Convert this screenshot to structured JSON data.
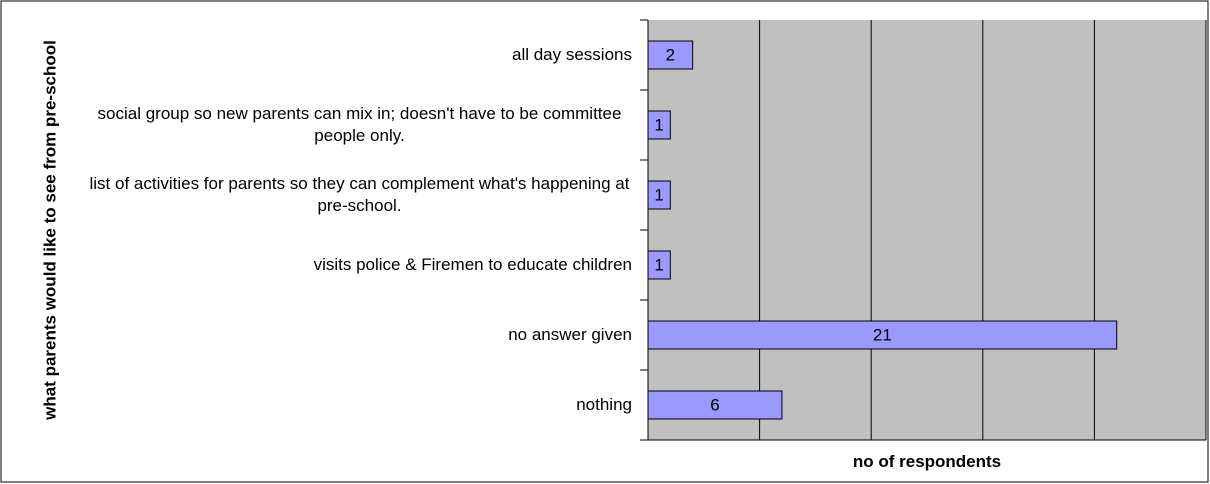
{
  "chart_data": {
    "type": "hbar",
    "categories": [
      "all day sessions",
      "social group so new parents can mix in; doesn't have to be committee people only.",
      "list of activities for parents so they can complement what's happening at pre-school.",
      "visits police & Firemen to educate children",
      "no answer given",
      "nothing"
    ],
    "values": [
      2,
      1,
      1,
      1,
      21,
      6
    ],
    "color": "#9999ff",
    "xlim": [
      0,
      25
    ],
    "xticks": [
      0,
      5,
      10,
      15,
      20,
      25
    ],
    "grid": true,
    "ylabel": "what parents would like to see from pre-school",
    "xlabel": "no of respondents"
  }
}
